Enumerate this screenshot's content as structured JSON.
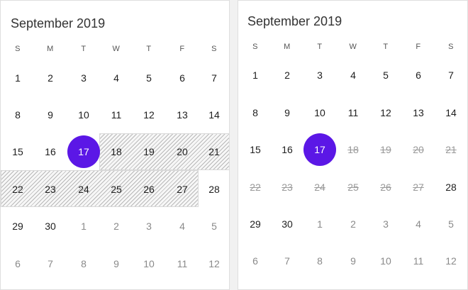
{
  "colors": {
    "accent": "#5b17e6",
    "hatch": "#b9b9b9"
  },
  "left_calendar": {
    "month_title": "September 2019",
    "weekdays": [
      "S",
      "M",
      "T",
      "W",
      "T",
      "F",
      "S"
    ],
    "weeks": [
      [
        "1",
        "2",
        "3",
        "4",
        "5",
        "6",
        "7"
      ],
      [
        "8",
        "9",
        "10",
        "11",
        "12",
        "13",
        "14"
      ],
      [
        "15",
        "16",
        "17",
        "18",
        "19",
        "20",
        "21"
      ],
      [
        "22",
        "23",
        "24",
        "25",
        "26",
        "27",
        "28"
      ],
      [
        "29",
        "30",
        "1",
        "2",
        "3",
        "4",
        "5"
      ],
      [
        "6",
        "7",
        "8",
        "9",
        "10",
        "11",
        "12"
      ]
    ],
    "today": "17",
    "blackout_dates": [
      "18",
      "19",
      "20",
      "21",
      "22",
      "23",
      "24",
      "25",
      "26",
      "27"
    ],
    "blackout_style": "hatched"
  },
  "right_calendar": {
    "month_title": "September 2019",
    "weekdays": [
      "S",
      "M",
      "T",
      "W",
      "T",
      "F",
      "S"
    ],
    "weeks": [
      [
        "1",
        "2",
        "3",
        "4",
        "5",
        "6",
        "7"
      ],
      [
        "8",
        "9",
        "10",
        "11",
        "12",
        "13",
        "14"
      ],
      [
        "15",
        "16",
        "17",
        "18",
        "19",
        "20",
        "21"
      ],
      [
        "22",
        "23",
        "24",
        "25",
        "26",
        "27",
        "28"
      ],
      [
        "29",
        "30",
        "1",
        "2",
        "3",
        "4",
        "5"
      ],
      [
        "6",
        "7",
        "8",
        "9",
        "10",
        "11",
        "12"
      ]
    ],
    "today": "17",
    "blackout_dates": [
      "18",
      "19",
      "20",
      "21",
      "22",
      "23",
      "24",
      "25",
      "26",
      "27"
    ],
    "blackout_style": "strikethrough"
  }
}
